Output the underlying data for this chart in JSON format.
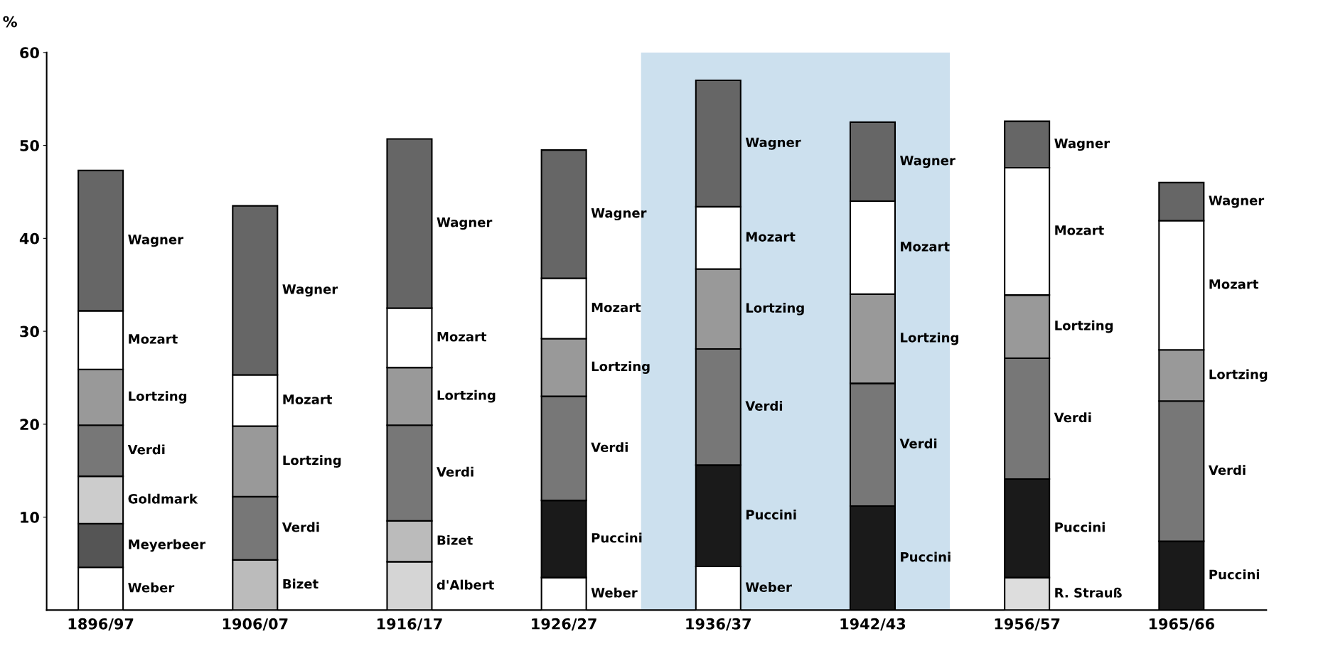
{
  "chart_data": {
    "type": "bar",
    "stacked": true,
    "ylabel": "%",
    "categories": [
      "1896/97",
      "1906/07",
      "1916/17",
      "1926/27",
      "1936/37",
      "1942/43",
      "1956/57",
      "1965/66"
    ],
    "series": [
      {
        "name": "Weber",
        "color": "#ffffff",
        "values": [
          4.6,
          null,
          null,
          3.5,
          4.7,
          null,
          null,
          null
        ]
      },
      {
        "name": "R. Strauß",
        "color": "#dddddd",
        "values": [
          null,
          null,
          null,
          null,
          null,
          null,
          3.5,
          null
        ]
      },
      {
        "name": "d'Albert",
        "color": "#d5d5d5",
        "values": [
          null,
          null,
          5.2,
          null,
          null,
          null,
          null,
          null
        ]
      },
      {
        "name": "Bizet",
        "color": "#bbbbbb",
        "values": [
          null,
          5.4,
          4.4,
          null,
          null,
          null,
          null,
          null
        ]
      },
      {
        "name": "Meyerbeer",
        "color": "#555555",
        "values": [
          4.7,
          null,
          null,
          null,
          null,
          null,
          null,
          null
        ]
      },
      {
        "name": "Goldmark",
        "color": "#cccccc",
        "values": [
          5.1,
          null,
          null,
          null,
          null,
          null,
          null,
          null
        ]
      },
      {
        "name": "Puccini",
        "color": "#1a1a1a",
        "values": [
          null,
          null,
          null,
          8.3,
          10.9,
          11.2,
          10.6,
          7.4
        ]
      },
      {
        "name": "Verdi",
        "color": "#777777",
        "values": [
          5.5,
          6.8,
          10.3,
          11.2,
          12.5,
          13.2,
          13.0,
          15.1
        ]
      },
      {
        "name": "Lortzing",
        "color": "#999999",
        "values": [
          6.0,
          7.6,
          6.2,
          6.2,
          8.6,
          9.6,
          6.8,
          5.5
        ]
      },
      {
        "name": "Mozart",
        "color": "#ffffff",
        "values": [
          6.3,
          5.5,
          6.4,
          6.5,
          6.7,
          10.0,
          13.7,
          13.9
        ]
      },
      {
        "name": "Wagner",
        "color": "#666666",
        "values": [
          15.1,
          18.2,
          18.2,
          13.8,
          13.6,
          8.5,
          5.0,
          4.1
        ]
      }
    ],
    "ylim": [
      0,
      60
    ],
    "yticks": [
      10,
      20,
      30,
      40,
      50,
      60
    ],
    "bands": [
      {
        "axis": "x",
        "from": "1936/37",
        "to": "1942/43",
        "color": "#cce0ee"
      }
    ],
    "grid": false
  }
}
